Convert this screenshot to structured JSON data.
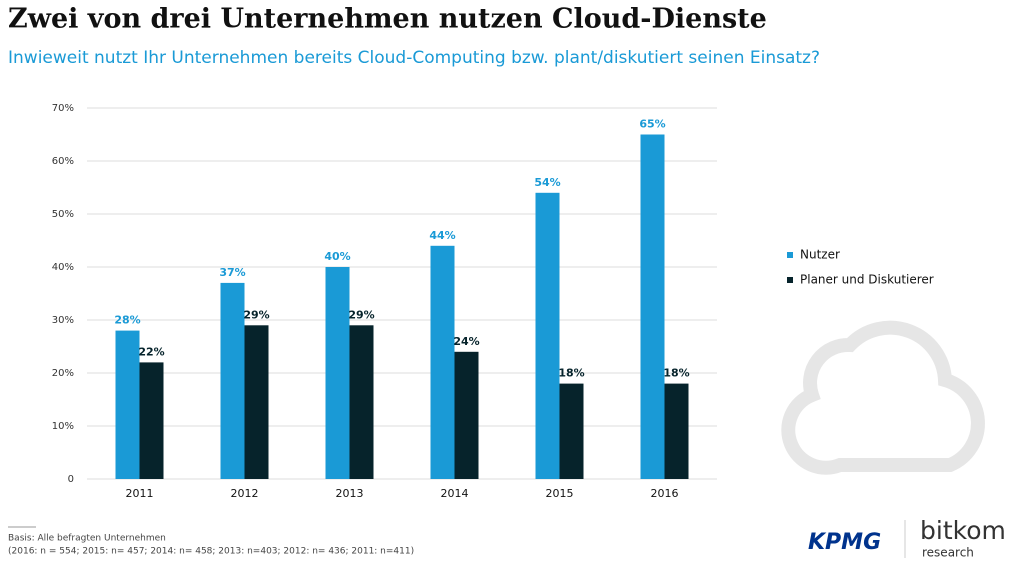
{
  "chart_data": {
    "type": "bar",
    "title": "Zwei von drei Unternehmen nutzen Cloud-Dienste",
    "subtitle": "Inwieweit nutzt Ihr Unternehmen bereits Cloud-Computing bzw. plant/diskutiert seinen Einsatz?",
    "categories": [
      "2011",
      "2012",
      "2013",
      "2014",
      "2015",
      "2016"
    ],
    "series": [
      {
        "name": "Nutzer",
        "color": "#1a9ad6",
        "values": [
          28,
          37,
          40,
          44,
          54,
          65
        ],
        "value_labels": [
          "28%",
          "37%",
          "40%",
          "44%",
          "54%",
          "65%"
        ]
      },
      {
        "name": "Planer und Diskutierer",
        "color": "#06232b",
        "values": [
          22,
          29,
          29,
          24,
          18,
          18
        ],
        "value_labels": [
          "22%",
          "29%",
          "29%",
          "24%",
          "18%",
          "18%"
        ]
      }
    ],
    "ylim": [
      0,
      70
    ],
    "yticks": [
      0,
      {
        "value": 10,
        "label": "10%"
      },
      {
        "value": 20,
        "label": "20%"
      },
      {
        "value": 30,
        "label": "30%"
      },
      {
        "value": 40,
        "label": "40%"
      },
      {
        "value": 50,
        "label": "50%"
      },
      {
        "value": 60,
        "label": "60%"
      },
      {
        "value": 70,
        "label": "70%"
      }
    ],
    "grid": true,
    "legend": "right"
  },
  "footnote": [
    "Basis: Alle befragten Unternehmen",
    "(2016: n = 554; 2015: n= 457; 2014: n= 458; 2013: n=403; 2012: n= 436; 2011: n=411)"
  ],
  "logos": [
    "KPMG",
    "bitkom",
    "research"
  ]
}
